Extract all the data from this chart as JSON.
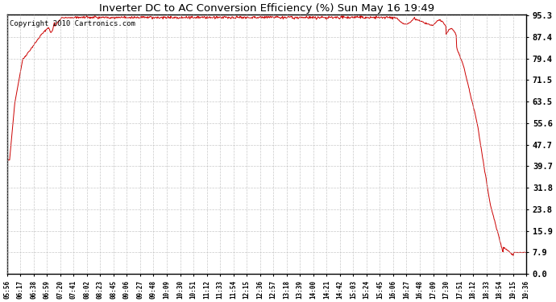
{
  "title": "Inverter DC to AC Conversion Efficiency (%) Sun May 16 19:49",
  "copyright_text": "Copyright 2010 Cartronics.com",
  "line_color": "#cc0000",
  "background_color": "#ffffff",
  "plot_bg_color": "#ffffff",
  "grid_color": "#bbbbbb",
  "ytick_labels": [
    0.0,
    7.9,
    15.9,
    23.8,
    31.8,
    39.7,
    47.7,
    55.6,
    63.5,
    71.5,
    79.4,
    87.4,
    95.3
  ],
  "ymin": 0.0,
  "ymax": 95.3,
  "xtick_labels": [
    "05:56",
    "06:17",
    "06:38",
    "06:59",
    "07:20",
    "07:41",
    "08:02",
    "08:23",
    "08:45",
    "09:06",
    "09:27",
    "09:48",
    "10:09",
    "10:30",
    "10:51",
    "11:12",
    "11:33",
    "11:54",
    "12:15",
    "12:36",
    "12:57",
    "13:18",
    "13:39",
    "14:00",
    "14:21",
    "14:42",
    "15:03",
    "15:24",
    "15:45",
    "16:06",
    "16:27",
    "16:48",
    "17:09",
    "17:30",
    "17:51",
    "18:12",
    "18:33",
    "18:54",
    "19:15",
    "19:36"
  ],
  "figsize": [
    6.9,
    3.75
  ],
  "dpi": 100
}
